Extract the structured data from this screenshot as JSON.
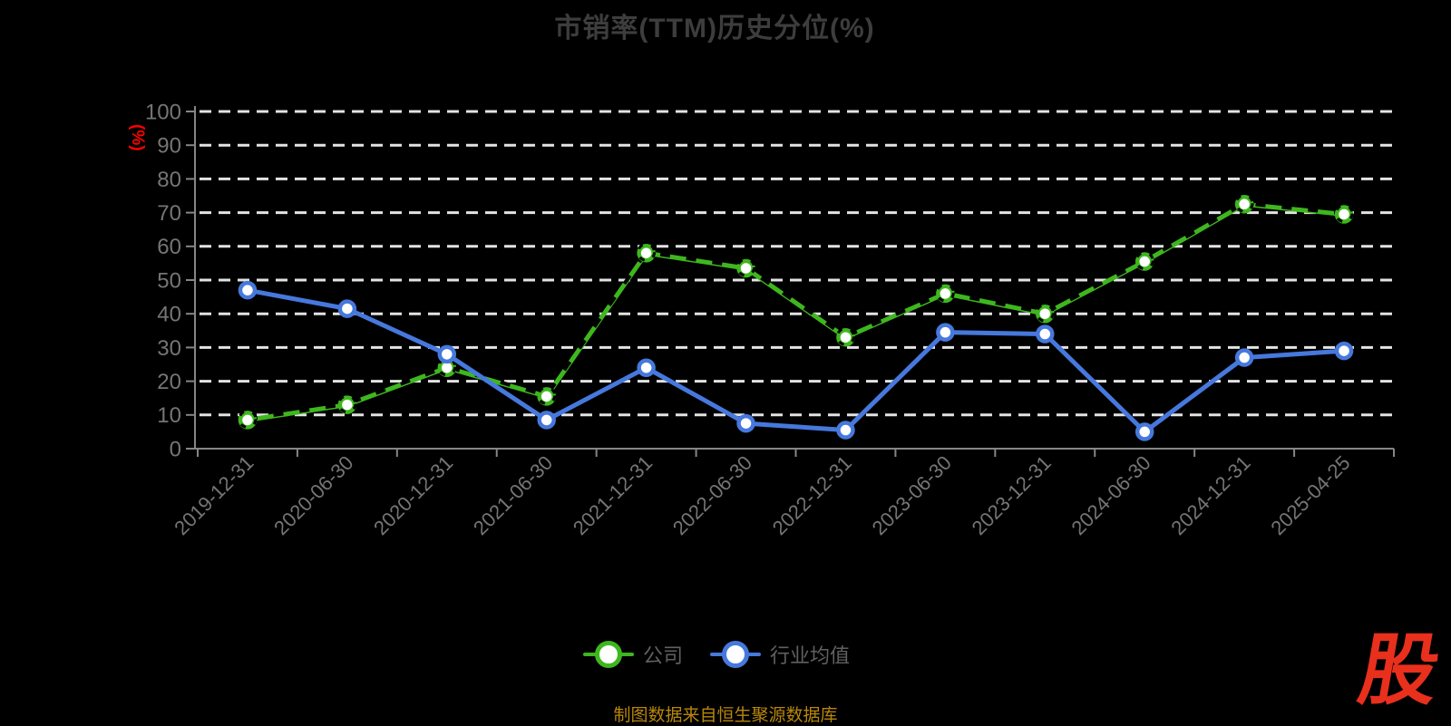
{
  "title": "市销率(TTM)历史分位(%)",
  "y_axis_unit": "(%)",
  "source_note": "制图数据来自恒生聚源数据库",
  "logo_text": "股",
  "legend": [
    {
      "label": "公司",
      "color": "#3eb71e"
    },
    {
      "label": "行业均值",
      "color": "#4678dd"
    }
  ],
  "colors": {
    "background": "#000000",
    "title_text": "#3d3d3d",
    "axis_line": "#868686",
    "tick_label": "#757575",
    "grid_line": "#e3e3e3",
    "company_green": "#3eb71e",
    "industry_blue": "#4678dd",
    "marker_fill": "#ffffff",
    "company_overlay_dash": "#000000",
    "legend_text": "#606060",
    "source_text": "#b8860b",
    "unit_label_red": "#ff0000",
    "logo_red": "#e8301d"
  },
  "chart_data": {
    "type": "line",
    "title": "市销率(TTM)历史分位(%)",
    "xlabel": "",
    "ylabel": "(%)",
    "ylim": [
      0,
      100
    ],
    "yticks": [
      0,
      10,
      20,
      30,
      40,
      50,
      60,
      70,
      80,
      90,
      100
    ],
    "grid": "horizontal-dashed-white",
    "legend_position": "bottom",
    "categories": [
      "2019-12-31",
      "2020-06-30",
      "2020-12-31",
      "2021-06-30",
      "2021-12-31",
      "2022-06-30",
      "2022-12-31",
      "2023-06-30",
      "2023-12-31",
      "2024-06-30",
      "2024-12-31",
      "2025-04-25"
    ],
    "series": [
      {
        "name": "公司",
        "color": "#3eb71e",
        "marker": "hollow-circle",
        "overlay_black_dashed": true,
        "values": [
          8.5,
          13,
          24,
          15.5,
          58,
          53.5,
          33,
          46,
          40,
          55.5,
          72.5,
          69.5
        ]
      },
      {
        "name": "行业均值",
        "color": "#4678dd",
        "marker": "hollow-circle",
        "overlay_black_dashed": false,
        "values": [
          47,
          41.5,
          28,
          8.5,
          24,
          7.5,
          5.5,
          34.5,
          34,
          5,
          27,
          29
        ]
      }
    ]
  }
}
